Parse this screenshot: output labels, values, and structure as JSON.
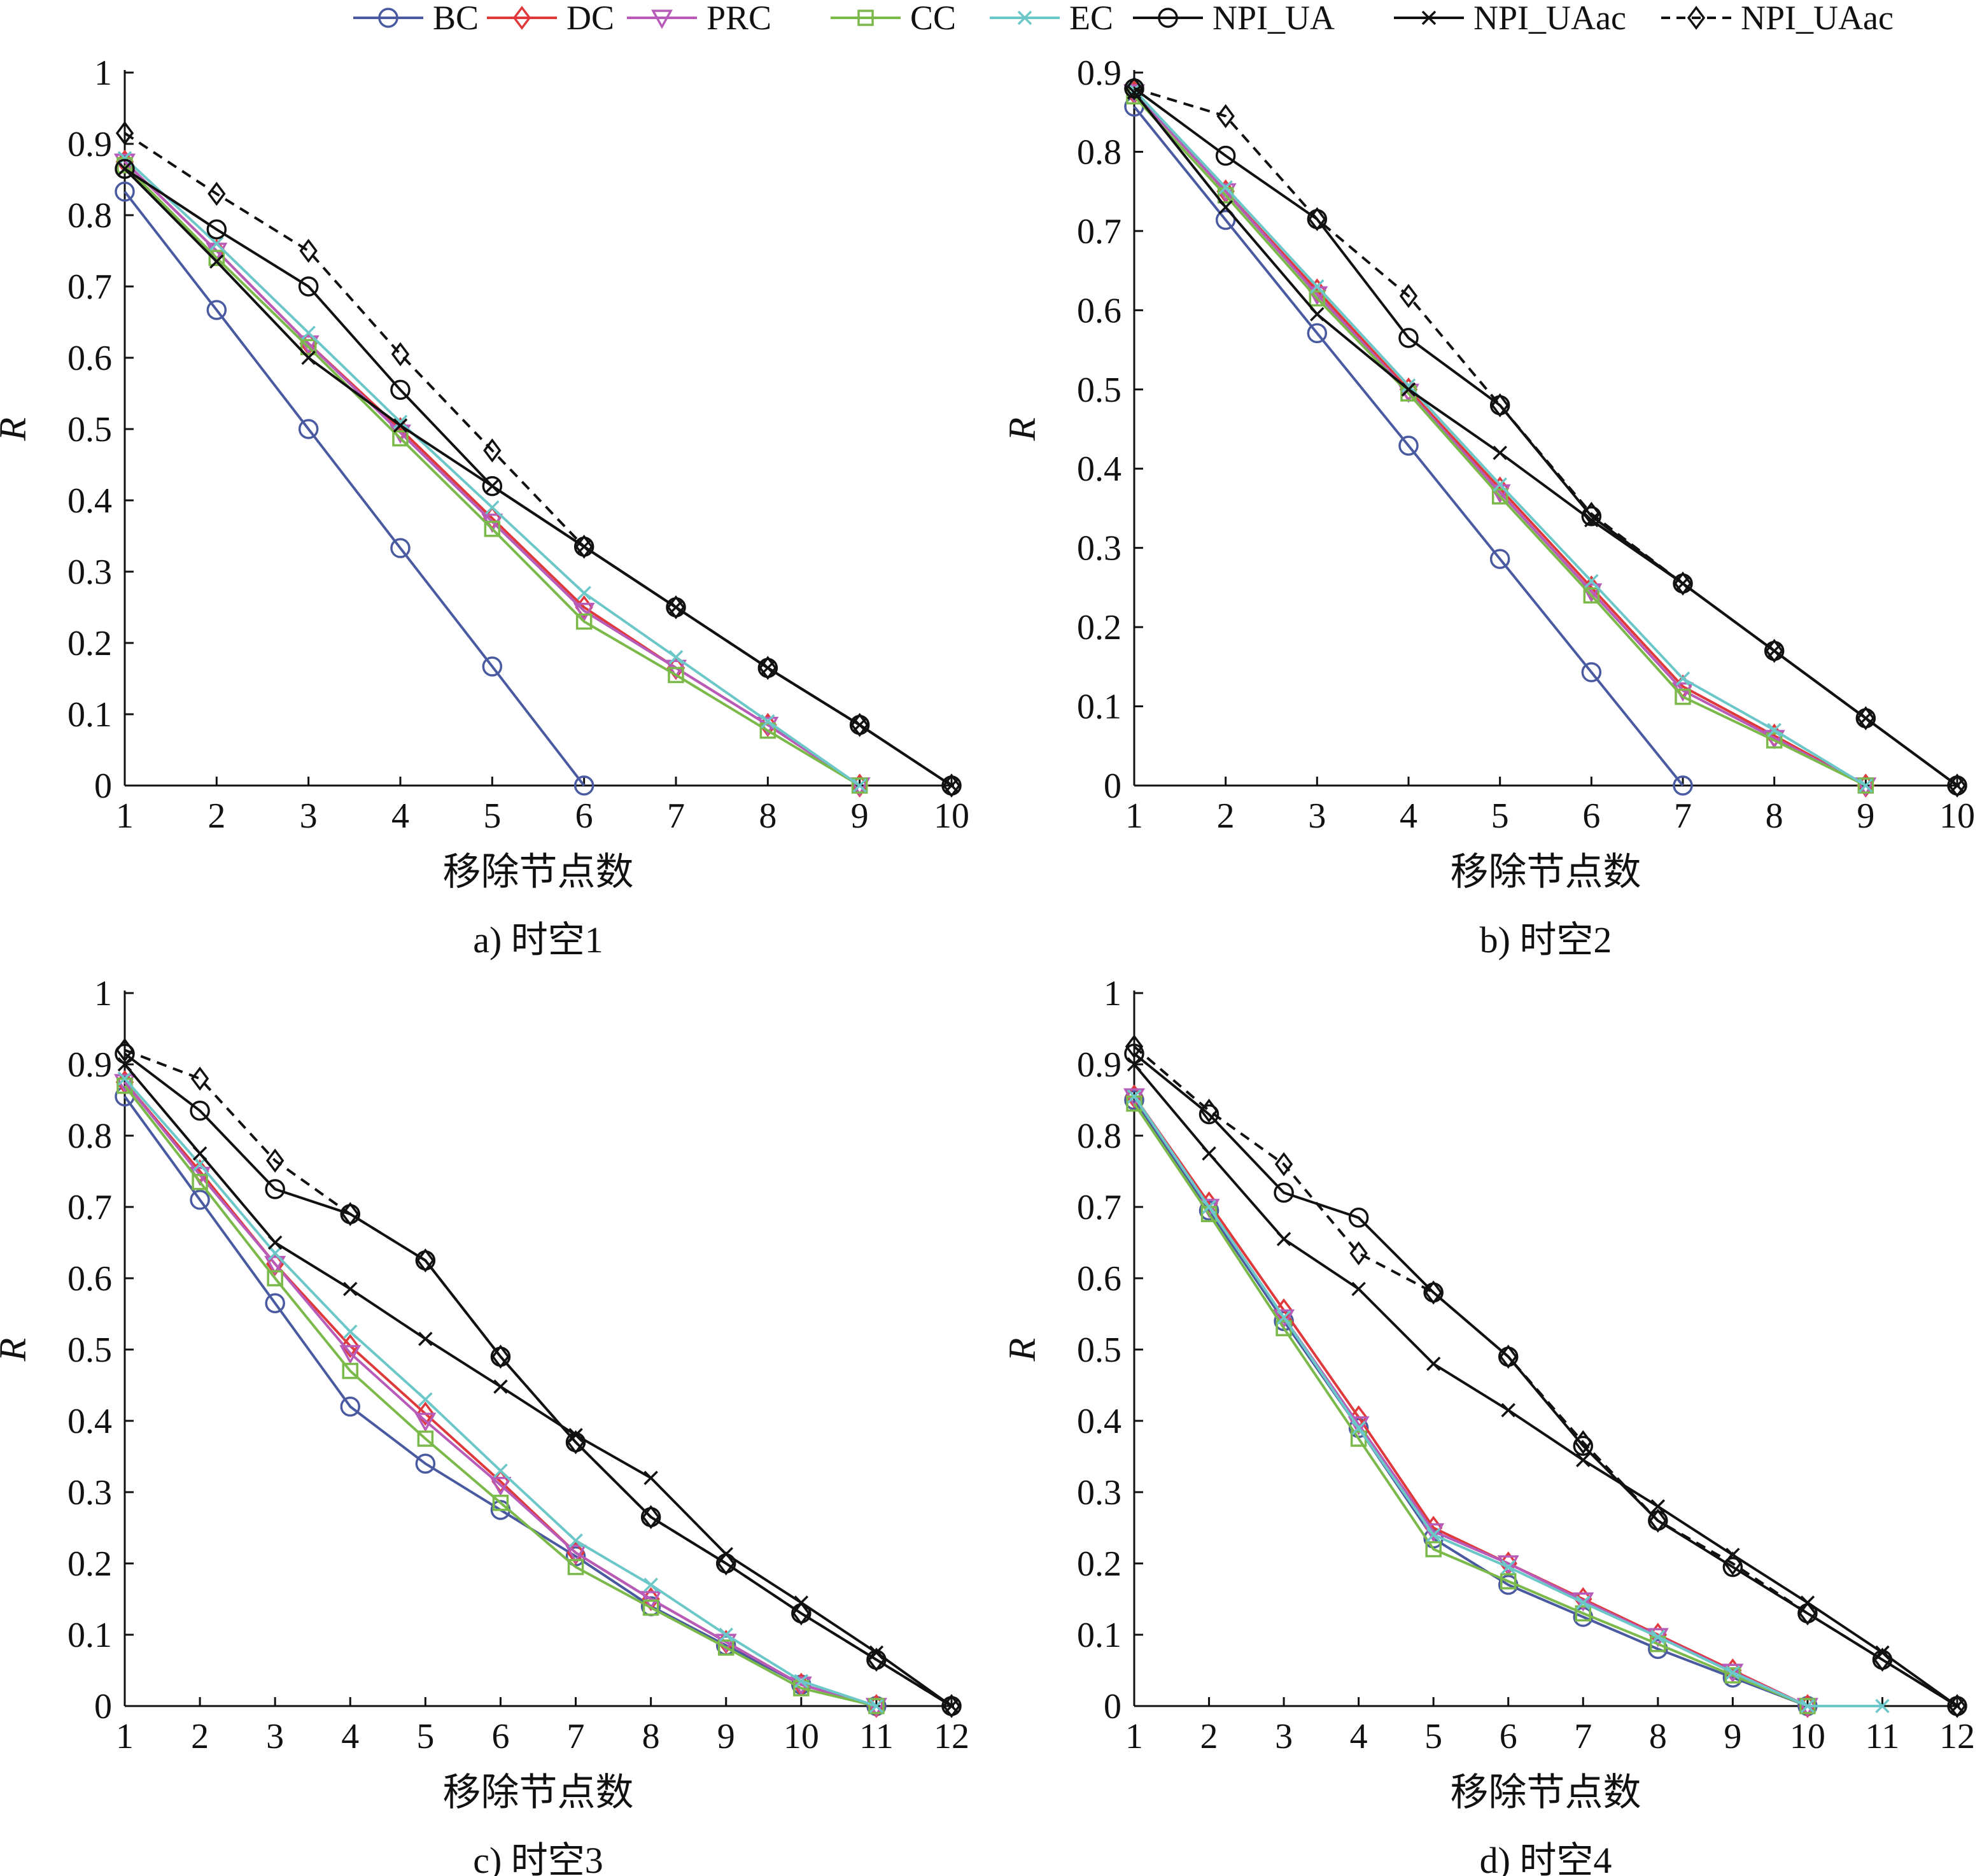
{
  "legend": {
    "placement": "top",
    "items": [
      {
        "label": "BC",
        "color": "#4a5aa0",
        "marker": "circle",
        "dash": false
      },
      {
        "label": "DC",
        "color": "#e0393b",
        "marker": "diamond",
        "dash": false
      },
      {
        "label": "PRC",
        "color": "#b85bb8",
        "marker": "triangle-down",
        "dash": false
      },
      {
        "label": "CC",
        "color": "#7ab94a",
        "marker": "square",
        "dash": false
      },
      {
        "label": "EC",
        "color": "#6cc7c9",
        "marker": "x",
        "dash": false
      },
      {
        "label": "NPI_UA",
        "color": "#111111",
        "marker": "circle",
        "dash": false
      },
      {
        "label": "NPI_UAac",
        "color": "#111111",
        "marker": "x",
        "dash": false
      },
      {
        "label": "NPI_UAac",
        "color": "#111111",
        "marker": "diamond",
        "dash": true
      }
    ]
  },
  "chart_data": [
    {
      "type": "line",
      "caption": "a) 时空1",
      "xlabel": "移除节点数",
      "ylabel": "R",
      "xlim": [
        1,
        10
      ],
      "ylim": [
        0,
        1
      ],
      "xticks": [
        1,
        2,
        3,
        4,
        5,
        6,
        7,
        8,
        9,
        10
      ],
      "yticks": [
        "0",
        "0.1",
        "0.2",
        "0.3",
        "0.4",
        "0.5",
        "0.6",
        "0.7",
        "0.8",
        "0.9",
        "1"
      ],
      "series": [
        {
          "name": "BC",
          "x": [
            1,
            2,
            3,
            4,
            5,
            6
          ],
          "values": [
            0.833,
            0.667,
            0.5,
            0.333,
            0.167,
            0.0
          ]
        },
        {
          "name": "DC",
          "x": [
            1,
            2,
            3,
            4,
            5,
            6,
            7,
            8,
            9
          ],
          "values": [
            0.875,
            0.75,
            0.62,
            0.5,
            0.375,
            0.25,
            0.165,
            0.085,
            0.0
          ]
        },
        {
          "name": "PRC",
          "x": [
            1,
            2,
            3,
            4,
            5,
            6,
            7,
            8,
            9
          ],
          "values": [
            0.875,
            0.75,
            0.62,
            0.495,
            0.37,
            0.245,
            0.165,
            0.085,
            0.0
          ]
        },
        {
          "name": "CC",
          "x": [
            1,
            2,
            3,
            4,
            5,
            6,
            7,
            8,
            9
          ],
          "values": [
            0.87,
            0.74,
            0.615,
            0.487,
            0.36,
            0.23,
            0.155,
            0.077,
            0.0
          ]
        },
        {
          "name": "EC",
          "x": [
            1,
            2,
            3,
            4,
            5,
            6,
            7,
            8,
            9
          ],
          "values": [
            0.88,
            0.76,
            0.635,
            0.51,
            0.39,
            0.27,
            0.18,
            0.09,
            0.0
          ]
        },
        {
          "name": "NPI_UA",
          "x": [
            1,
            2,
            3,
            4,
            5,
            6,
            7,
            8,
            9,
            10
          ],
          "values": [
            0.865,
            0.78,
            0.7,
            0.555,
            0.42,
            0.335,
            0.25,
            0.165,
            0.085,
            0.0
          ]
        },
        {
          "name": "NPI_UAac",
          "x": [
            1,
            2,
            3,
            4,
            5,
            6,
            7,
            8,
            9,
            10
          ],
          "values": [
            0.865,
            0.735,
            0.6,
            0.505,
            0.42,
            0.335,
            0.25,
            0.165,
            0.085,
            0.0
          ]
        },
        {
          "name": "NPI_UAac",
          "x": [
            1,
            2,
            3,
            4,
            5,
            6,
            7,
            8,
            9,
            10
          ],
          "values": [
            0.915,
            0.83,
            0.75,
            0.605,
            0.47,
            0.335,
            0.25,
            0.165,
            0.085,
            0.0
          ]
        }
      ]
    },
    {
      "type": "line",
      "caption": "b) 时空2",
      "xlabel": "移除节点数",
      "ylabel": "R",
      "xlim": [
        1,
        10
      ],
      "ylim": [
        0,
        0.9
      ],
      "xticks": [
        1,
        2,
        3,
        4,
        5,
        6,
        7,
        8,
        9,
        10
      ],
      "yticks": [
        "0",
        "0.1",
        "0.2",
        "0.3",
        "0.4",
        "0.5",
        "0.6",
        "0.7",
        "0.8",
        "0.9"
      ],
      "series": [
        {
          "name": "BC",
          "x": [
            1,
            2,
            3,
            4,
            5,
            6,
            7
          ],
          "values": [
            0.857,
            0.714,
            0.571,
            0.429,
            0.286,
            0.143,
            0.0
          ]
        },
        {
          "name": "DC",
          "x": [
            1,
            2,
            3,
            4,
            5,
            6,
            7,
            8,
            9
          ],
          "values": [
            0.875,
            0.75,
            0.625,
            0.5,
            0.375,
            0.25,
            0.125,
            0.063,
            0.0
          ]
        },
        {
          "name": "PRC",
          "x": [
            1,
            2,
            3,
            4,
            5,
            6,
            7,
            8,
            9
          ],
          "values": [
            0.875,
            0.75,
            0.62,
            0.497,
            0.37,
            0.245,
            0.12,
            0.06,
            0.0
          ]
        },
        {
          "name": "CC",
          "x": [
            1,
            2,
            3,
            4,
            5,
            6,
            7,
            8,
            9
          ],
          "values": [
            0.87,
            0.745,
            0.615,
            0.495,
            0.365,
            0.24,
            0.112,
            0.057,
            0.0
          ]
        },
        {
          "name": "EC",
          "x": [
            1,
            2,
            3,
            4,
            5,
            6,
            7,
            8,
            9
          ],
          "values": [
            0.878,
            0.755,
            0.63,
            0.505,
            0.38,
            0.258,
            0.135,
            0.07,
            0.0
          ]
        },
        {
          "name": "NPI_UA",
          "x": [
            1,
            2,
            3,
            4,
            5,
            6,
            7,
            8,
            9,
            10
          ],
          "values": [
            0.88,
            0.795,
            0.715,
            0.565,
            0.48,
            0.34,
            0.255,
            0.17,
            0.085,
            0.0
          ]
        },
        {
          "name": "NPI_UAac",
          "x": [
            1,
            2,
            3,
            4,
            5,
            6,
            7,
            8,
            9,
            10
          ],
          "values": [
            0.875,
            0.73,
            0.595,
            0.5,
            0.42,
            0.335,
            0.255,
            0.17,
            0.085,
            0.0
          ]
        },
        {
          "name": "NPI_UAac",
          "x": [
            1,
            2,
            3,
            4,
            5,
            6,
            7,
            8,
            9,
            10
          ],
          "values": [
            0.88,
            0.845,
            0.715,
            0.618,
            0.48,
            0.343,
            0.255,
            0.17,
            0.085,
            0.0
          ]
        }
      ]
    },
    {
      "type": "line",
      "caption": "c) 时空3",
      "xlabel": "移除节点数",
      "ylabel": "R",
      "xlim": [
        1,
        12
      ],
      "ylim": [
        0,
        1
      ],
      "xticks": [
        1,
        2,
        3,
        4,
        5,
        6,
        7,
        8,
        9,
        10,
        11,
        12
      ],
      "yticks": [
        "0",
        "0.1",
        "0.2",
        "0.3",
        "0.4",
        "0.5",
        "0.6",
        "0.7",
        "0.8",
        "0.9",
        "1"
      ],
      "series": [
        {
          "name": "BC",
          "x": [
            1,
            2,
            3,
            4,
            5,
            6,
            7,
            8,
            9,
            10,
            11
          ],
          "values": [
            0.855,
            0.71,
            0.565,
            0.42,
            0.34,
            0.275,
            0.21,
            0.14,
            0.085,
            0.03,
            0.0
          ]
        },
        {
          "name": "DC",
          "x": [
            1,
            2,
            3,
            4,
            5,
            6,
            7,
            8,
            9,
            10,
            11
          ],
          "values": [
            0.875,
            0.75,
            0.62,
            0.505,
            0.41,
            0.315,
            0.215,
            0.15,
            0.09,
            0.03,
            0.0
          ]
        },
        {
          "name": "PRC",
          "x": [
            1,
            2,
            3,
            4,
            5,
            6,
            7,
            8,
            9,
            10,
            11
          ],
          "values": [
            0.875,
            0.745,
            0.62,
            0.495,
            0.4,
            0.31,
            0.215,
            0.15,
            0.09,
            0.03,
            0.0
          ]
        },
        {
          "name": "CC",
          "x": [
            1,
            2,
            3,
            4,
            5,
            6,
            7,
            8,
            9,
            10,
            11
          ],
          "values": [
            0.87,
            0.735,
            0.6,
            0.47,
            0.375,
            0.285,
            0.195,
            0.138,
            0.082,
            0.025,
            0.0
          ]
        },
        {
          "name": "EC",
          "x": [
            1,
            2,
            3,
            4,
            5,
            6,
            7,
            8,
            9,
            10,
            11
          ],
          "values": [
            0.88,
            0.76,
            0.635,
            0.525,
            0.43,
            0.33,
            0.232,
            0.17,
            0.1,
            0.035,
            0.0
          ]
        },
        {
          "name": "NPI_UA",
          "x": [
            1,
            2,
            3,
            4,
            5,
            6,
            7,
            8,
            9,
            10,
            11,
            12
          ],
          "values": [
            0.915,
            0.835,
            0.725,
            0.69,
            0.625,
            0.49,
            0.37,
            0.265,
            0.2,
            0.13,
            0.065,
            0.0
          ]
        },
        {
          "name": "NPI_UAac",
          "x": [
            1,
            2,
            3,
            4,
            5,
            6,
            7,
            8,
            9,
            10,
            11,
            12
          ],
          "values": [
            0.9,
            0.775,
            0.65,
            0.585,
            0.515,
            0.448,
            0.38,
            0.32,
            0.213,
            0.145,
            0.075,
            0.0
          ]
        },
        {
          "name": "NPI_UAac",
          "x": [
            1,
            2,
            3,
            4,
            5,
            6,
            7,
            8,
            9,
            10,
            11,
            12
          ],
          "values": [
            0.92,
            0.88,
            0.765,
            0.69,
            0.625,
            0.49,
            0.37,
            0.265,
            0.2,
            0.13,
            0.065,
            0.0
          ]
        }
      ]
    },
    {
      "type": "line",
      "caption": "d) 时空4",
      "xlabel": "移除节点数",
      "ylabel": "R",
      "xlim": [
        1,
        12
      ],
      "ylim": [
        0,
        1
      ],
      "xticks": [
        1,
        2,
        3,
        4,
        5,
        6,
        7,
        8,
        9,
        10,
        11,
        12
      ],
      "yticks": [
        "0",
        "0.1",
        "0.2",
        "0.3",
        "0.4",
        "0.5",
        "0.6",
        "0.7",
        "0.8",
        "0.9",
        "1"
      ],
      "series": [
        {
          "name": "BC",
          "x": [
            1,
            2,
            3,
            4,
            5,
            6,
            7,
            8,
            9,
            10
          ],
          "values": [
            0.85,
            0.695,
            0.54,
            0.39,
            0.235,
            0.17,
            0.125,
            0.08,
            0.04,
            0.0
          ]
        },
        {
          "name": "DC",
          "x": [
            1,
            2,
            3,
            4,
            5,
            6,
            7,
            8,
            9,
            10
          ],
          "values": [
            0.855,
            0.705,
            0.555,
            0.405,
            0.25,
            0.2,
            0.15,
            0.1,
            0.05,
            0.0
          ]
        },
        {
          "name": "PRC",
          "x": [
            1,
            2,
            3,
            4,
            5,
            6,
            7,
            8,
            9,
            10
          ],
          "values": [
            0.855,
            0.7,
            0.545,
            0.395,
            0.245,
            0.2,
            0.148,
            0.098,
            0.048,
            0.0
          ]
        },
        {
          "name": "CC",
          "x": [
            1,
            2,
            3,
            4,
            5,
            6,
            7,
            8,
            9,
            10
          ],
          "values": [
            0.845,
            0.69,
            0.53,
            0.375,
            0.22,
            0.175,
            0.13,
            0.087,
            0.043,
            0.0
          ]
        },
        {
          "name": "EC",
          "x": [
            1,
            2,
            3,
            4,
            5,
            6,
            7,
            8,
            9,
            10,
            11
          ],
          "values": [
            0.855,
            0.7,
            0.545,
            0.39,
            0.24,
            0.195,
            0.145,
            0.097,
            0.047,
            0.0,
            0.0
          ]
        },
        {
          "name": "NPI_UA",
          "x": [
            1,
            2,
            3,
            4,
            5,
            6,
            7,
            8,
            9,
            10,
            11,
            12
          ],
          "values": [
            0.915,
            0.83,
            0.72,
            0.685,
            0.58,
            0.49,
            0.365,
            0.26,
            0.195,
            0.13,
            0.065,
            0.0
          ]
        },
        {
          "name": "NPI_UAac",
          "x": [
            1,
            2,
            3,
            4,
            5,
            6,
            7,
            8,
            9,
            10,
            11,
            12
          ],
          "values": [
            0.9,
            0.775,
            0.655,
            0.585,
            0.48,
            0.415,
            0.345,
            0.28,
            0.212,
            0.145,
            0.075,
            0.0
          ]
        },
        {
          "name": "NPI_UAac",
          "x": [
            1,
            2,
            3,
            4,
            5,
            6,
            7,
            8,
            9,
            10,
            11,
            12
          ],
          "values": [
            0.925,
            0.835,
            0.76,
            0.635,
            0.58,
            0.49,
            0.37,
            0.26,
            0.2,
            0.13,
            0.065,
            0.0
          ]
        }
      ]
    }
  ]
}
